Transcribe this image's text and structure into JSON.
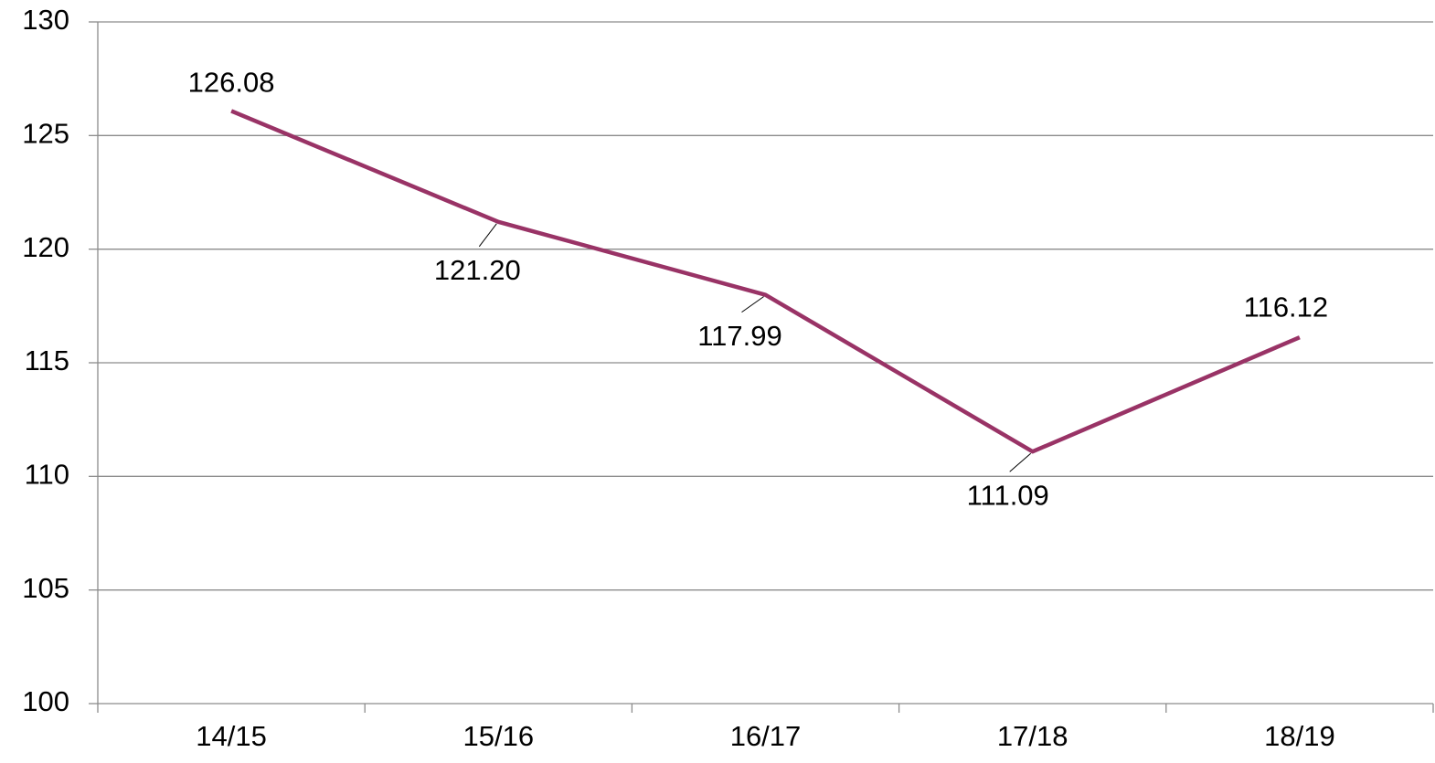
{
  "chart_data": {
    "type": "line",
    "categories": [
      "14/15",
      "15/16",
      "16/17",
      "17/18",
      "18/19"
    ],
    "series": [
      {
        "name": null,
        "color": "#993366",
        "values": [
          126.08,
          121.2,
          117.99,
          111.09,
          116.12
        ],
        "value_labels": [
          "126.08",
          "121.20",
          "117.99",
          "111.09",
          "116.12"
        ]
      }
    ],
    "ylim": [
      100,
      130
    ],
    "yticks": [
      100,
      105,
      110,
      115,
      120,
      125,
      130
    ],
    "grid": true
  }
}
